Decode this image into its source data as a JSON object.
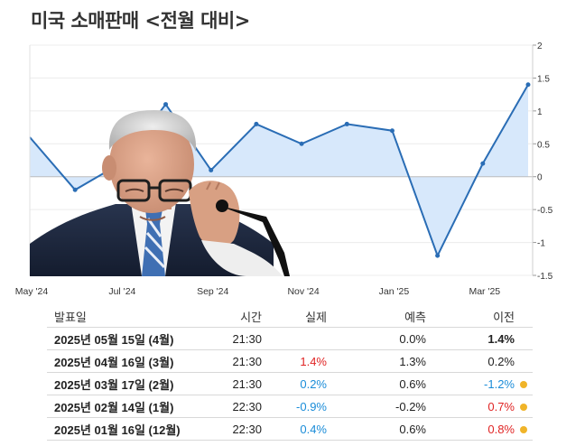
{
  "title": "미국 소매판매 <전월 대비>",
  "chart_data": {
    "type": "area",
    "x": [
      "2024-05",
      "2024-06",
      "2024-07",
      "2024-08",
      "2024-09",
      "2024-10",
      "2024-11",
      "2024-12",
      "2025-01",
      "2025-02",
      "2025-03",
      "2025-04"
    ],
    "x_tick_labels": [
      "May '24",
      "Jul '24",
      "Sep '24",
      "Nov '24",
      "Jan '25",
      "Mar '25"
    ],
    "values": [
      0.6,
      -0.2,
      0.2,
      1.1,
      0.1,
      0.8,
      0.5,
      0.8,
      0.7,
      -1.2,
      0.2,
      1.4
    ],
    "y_ticks": [
      "2",
      "1.5",
      "1",
      "0.5",
      "0",
      "-0.5",
      "-1",
      "-1.5"
    ],
    "ylim": [
      -1.5,
      2
    ],
    "grid": true,
    "colors": {
      "line": "#2a6db5",
      "fill": "#d7e8fb",
      "zero": "#bcbcbc"
    }
  },
  "table": {
    "headers": {
      "date": "발표일",
      "time": "시간",
      "actual": "실제",
      "forecast": "예측",
      "previous": "이전"
    },
    "rows": [
      {
        "date": "2025년 05월 15일 (4월)",
        "time": "21:30",
        "actual": "",
        "actual_color": "#222222",
        "forecast": "0.0%",
        "previous": "1.4%",
        "previous_color": "#222222",
        "previous_bold": true,
        "dot": false
      },
      {
        "date": "2025년 04월 16일 (3월)",
        "time": "21:30",
        "actual": "1.4%",
        "actual_color": "#e02424",
        "forecast": "1.3%",
        "previous": "0.2%",
        "previous_color": "#222222",
        "previous_bold": false,
        "dot": false
      },
      {
        "date": "2025년 03월 17일 (2월)",
        "time": "21:30",
        "actual": "0.2%",
        "actual_color": "#1a8cd8",
        "forecast": "0.6%",
        "previous": "-1.2%",
        "previous_color": "#1a8cd8",
        "previous_bold": false,
        "dot": true
      },
      {
        "date": "2025년 02월 14일 (1월)",
        "time": "22:30",
        "actual": "-0.9%",
        "actual_color": "#1a8cd8",
        "forecast": "-0.2%",
        "previous": "0.7%",
        "previous_color": "#e02424",
        "previous_bold": false,
        "dot": true
      },
      {
        "date": "2025년 01월 16일 (12월)",
        "time": "22:30",
        "actual": "0.4%",
        "actual_color": "#1a8cd8",
        "forecast": "0.6%",
        "previous": "0.8%",
        "previous_color": "#e02424",
        "previous_bold": false,
        "dot": true
      }
    ]
  }
}
